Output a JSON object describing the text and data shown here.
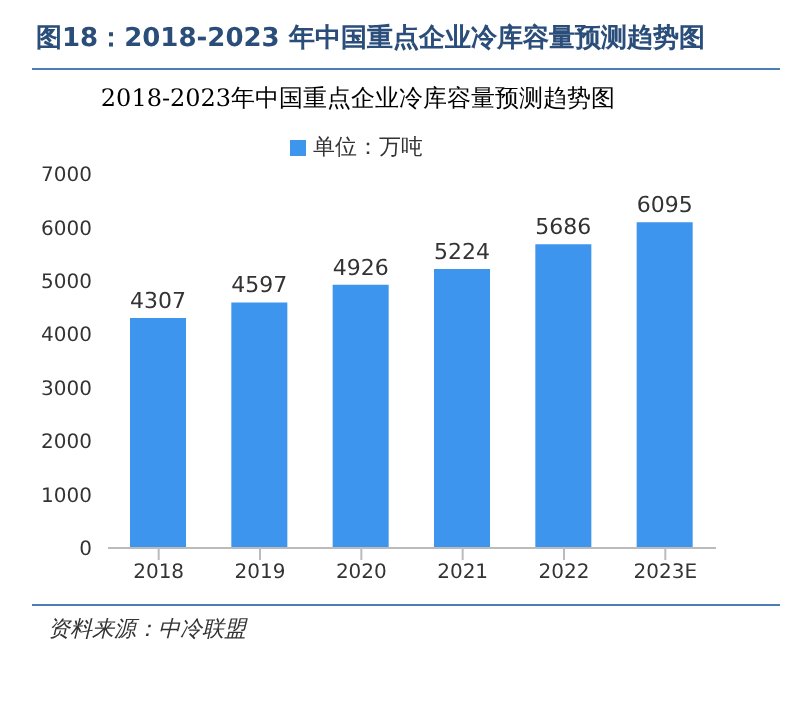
{
  "chart_data": {
    "type": "bar",
    "title": "图18：2018-2023 年中国重点企业冷库容量预测趋势图",
    "subtitle": "2018-2023年中国重点企业冷库容量预测趋势图",
    "categories": [
      "2018",
      "2019",
      "2020",
      "2021",
      "2022",
      "2023E"
    ],
    "series": [
      {
        "name": "单位：万吨",
        "color": "#3d95ee",
        "values": [
          4307,
          4597,
          4926,
          5224,
          5686,
          6095
        ]
      }
    ],
    "ylim": [
      0,
      7000
    ],
    "yticks": [
      0,
      1000,
      2000,
      3000,
      4000,
      5000,
      6000,
      7000
    ],
    "data_labels": true,
    "legend": "top",
    "grid": false,
    "annotations": [
      "资料来源：中冷联盟"
    ]
  }
}
